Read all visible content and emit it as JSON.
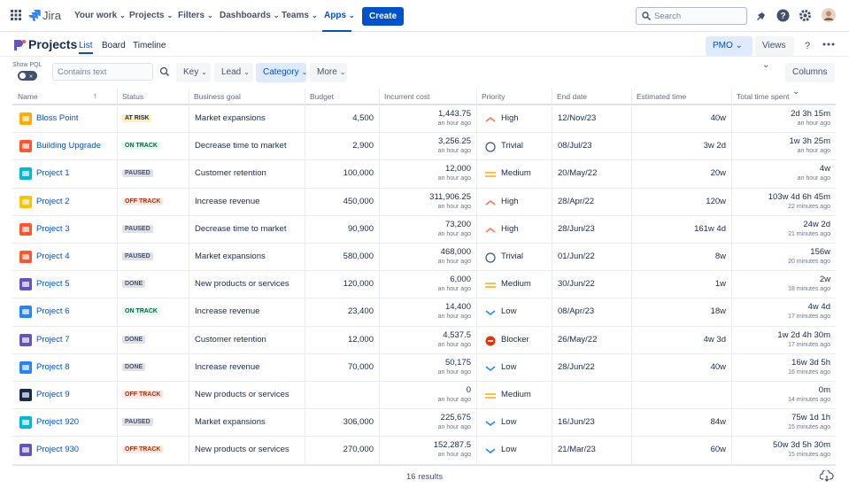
{
  "nav": {
    "logo": "Jira",
    "menu": [
      "Your work",
      "Projects",
      "Filters",
      "Dashboards",
      "Teams",
      "Apps"
    ],
    "create": "Create",
    "search": "Search"
  },
  "page": {
    "title": "Projects",
    "tabs": [
      "List",
      "Board",
      "Timeline"
    ],
    "pmo": "PMO",
    "views": "Views"
  },
  "filters": {
    "show_pql": "Show PQL",
    "search": "Contains text",
    "buttons": [
      "Key",
      "Lead",
      "Category",
      "More"
    ],
    "columns": "Columns"
  },
  "table": {
    "columns": [
      "Name",
      "Status",
      "Business goal",
      "Budget",
      "Incurrent cost",
      "Priority",
      "End date",
      "Estimated time",
      "Total time spent"
    ],
    "rows": [
      {
        "name": "Bloss Point",
        "status": "AT RISK",
        "goal": "Market expansions",
        "budget": "4,500",
        "cost": "1,443.75",
        "cost_time": "an hour ago",
        "priority": "High",
        "end": "12/Nov/23",
        "est": "40w",
        "spent": "2d 3h 15m",
        "spent_time": "an hour ago"
      },
      {
        "name": "Building Upgrade",
        "status": "ON TRACK",
        "goal": "Decrease time to market",
        "budget": "2,900",
        "cost": "3,256.25",
        "cost_time": "an hour ago",
        "priority": "Trivial",
        "end": "08/Jul/23",
        "est": "3w 2d",
        "spent": "1w 3h 25m",
        "spent_time": "an hour ago"
      },
      {
        "name": "Project 1",
        "status": "PAUSED",
        "goal": "Customer retention",
        "budget": "100,000",
        "cost": "12,000",
        "cost_time": "an hour ago",
        "priority": "Medium",
        "end": "20/May/22",
        "est": "20w",
        "spent": "4w",
        "spent_time": "an hour ago"
      },
      {
        "name": "Project 2",
        "status": "OFF TRACK",
        "goal": "Increase revenue",
        "budget": "450,000",
        "cost": "311,906.25",
        "cost_time": "an hour ago",
        "priority": "High",
        "end": "28/Apr/22",
        "est": "120w",
        "spent": "103w 4d 6h 45m",
        "spent_time": "22 minutes ago"
      },
      {
        "name": "Project 3",
        "status": "PAUSED",
        "goal": "Decrease time to market",
        "budget": "90,900",
        "cost": "73,200",
        "cost_time": "an hour ago",
        "priority": "High",
        "end": "28/Jun/23",
        "est": "161w 4d",
        "spent": "24w 2d",
        "spent_time": "21 minutes ago"
      },
      {
        "name": "Project 4",
        "status": "PAUSED",
        "goal": "Market expansions",
        "budget": "580,000",
        "cost": "468,000",
        "cost_time": "an hour ago",
        "priority": "Trivial",
        "end": "01/Jun/22",
        "est": "8w",
        "spent": "156w",
        "spent_time": "20 minutes ago"
      },
      {
        "name": "Project 5",
        "status": "DONE",
        "goal": "New products or services",
        "budget": "120,000",
        "cost": "6,000",
        "cost_time": "an hour ago",
        "priority": "Medium",
        "end": "30/Jun/22",
        "est": "1w",
        "spent": "2w",
        "spent_time": "18 minutes ago"
      },
      {
        "name": "Project 6",
        "status": "ON TRACK",
        "goal": "Increase revenue",
        "budget": "23,400",
        "cost": "14,400",
        "cost_time": "an hour ago",
        "priority": "Low",
        "end": "08/Apr/23",
        "est": "18w",
        "spent": "4w 4d",
        "spent_time": "17 minutes ago"
      },
      {
        "name": "Project 7",
        "status": "DONE",
        "goal": "Customer retention",
        "budget": "12,000",
        "cost": "4,537.5",
        "cost_time": "an hour ago",
        "priority": "Blocker",
        "end": "26/May/22",
        "est": "4w 3d",
        "spent": "1w 2d 4h 30m",
        "spent_time": "17 minutes ago"
      },
      {
        "name": "Project 8",
        "status": "DONE",
        "goal": "Increase revenue",
        "budget": "70,000",
        "cost": "50,175",
        "cost_time": "an hour ago",
        "priority": "Low",
        "end": "28/Jun/22",
        "est": "40w",
        "spent": "16w 3d 5h",
        "spent_time": "16 minutes ago"
      },
      {
        "name": "Project 9",
        "status": "OFF TRACK",
        "goal": "New products or services",
        "budget": null,
        "cost": "0",
        "cost_time": "an hour ago",
        "priority": "Medium",
        "end": null,
        "est": null,
        "spent": "0m",
        "spent_time": "14 minutes ago"
      },
      {
        "name": "Project 920",
        "status": "PAUSED",
        "goal": "Market expansions",
        "budget": "306,000",
        "cost": "225,675",
        "cost_time": "an hour ago",
        "priority": "Low",
        "end": "16/Jun/23",
        "est": "84w",
        "spent": "75w 1d 1h",
        "spent_time": "15 minutes ago"
      },
      {
        "name": "Project 930",
        "status": "OFF TRACK",
        "goal": "New products or services",
        "budget": "270,000",
        "cost": "152,287.5",
        "cost_time": "an hour ago",
        "priority": "Low",
        "end": "21/Mar/23",
        "est": "60w",
        "spent": "50w 3d 5h 30m",
        "spent_time": "15 minutes ago"
      }
    ]
  },
  "footer": {
    "results": "16 results"
  }
}
